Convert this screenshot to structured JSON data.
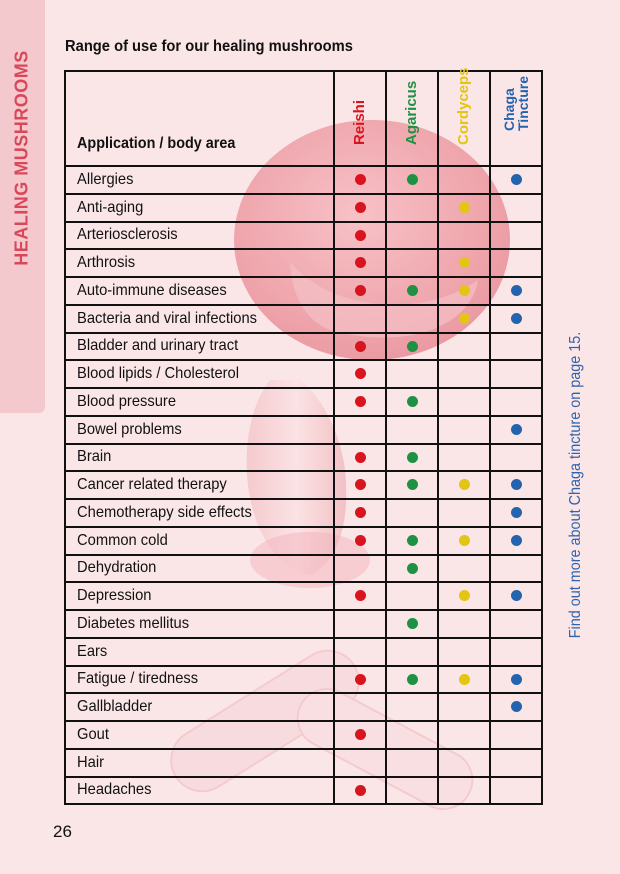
{
  "side_tab": {
    "label": "HEALING MUSHROOMS"
  },
  "heading": "Range of use for our healing mushrooms",
  "table": {
    "app_header": "Application / body area",
    "mushrooms": [
      {
        "label_lines": [
          "Reishi"
        ],
        "color": "#d8141e"
      },
      {
        "label_lines": [
          "Agaricus"
        ],
        "color": "#1f9142"
      },
      {
        "label_lines": [
          "Cordyceps"
        ],
        "color": "#e2c613"
      },
      {
        "label_lines": [
          "Chaga",
          "Tincture"
        ],
        "color": "#2463ad"
      }
    ],
    "rows": [
      {
        "label": "Allergies",
        "marks": [
          true,
          true,
          false,
          true
        ]
      },
      {
        "label": "Anti-aging",
        "marks": [
          true,
          false,
          true,
          false
        ]
      },
      {
        "label": "Arteriosclerosis",
        "marks": [
          true,
          false,
          false,
          false
        ]
      },
      {
        "label": "Arthrosis",
        "marks": [
          true,
          false,
          true,
          false
        ]
      },
      {
        "label": "Auto-immune diseases",
        "marks": [
          true,
          true,
          true,
          true
        ]
      },
      {
        "label": "Bacteria and viral infections",
        "marks": [
          false,
          false,
          true,
          true
        ]
      },
      {
        "label": "Bladder and urinary tract",
        "marks": [
          true,
          true,
          false,
          false
        ]
      },
      {
        "label": "Blood lipids / Cholesterol",
        "marks": [
          true,
          false,
          false,
          false
        ]
      },
      {
        "label": "Blood pressure",
        "marks": [
          true,
          true,
          false,
          false
        ]
      },
      {
        "label": "Bowel problems",
        "marks": [
          false,
          false,
          false,
          true
        ]
      },
      {
        "label": "Brain",
        "marks": [
          true,
          true,
          false,
          false
        ]
      },
      {
        "label": "Cancer related therapy",
        "marks": [
          true,
          true,
          true,
          true
        ]
      },
      {
        "label": "Chemotherapy side effects",
        "marks": [
          true,
          false,
          false,
          true
        ]
      },
      {
        "label": "Common cold",
        "marks": [
          true,
          true,
          true,
          true
        ]
      },
      {
        "label": "Dehydration",
        "marks": [
          false,
          true,
          false,
          false
        ]
      },
      {
        "label": "Depression",
        "marks": [
          true,
          false,
          true,
          true
        ]
      },
      {
        "label": "Diabetes mellitus",
        "marks": [
          false,
          true,
          false,
          false
        ]
      },
      {
        "label": "Ears",
        "marks": [
          false,
          false,
          false,
          false
        ]
      },
      {
        "label": "Fatigue / tiredness",
        "marks": [
          true,
          true,
          true,
          true
        ]
      },
      {
        "label": "Gallbladder",
        "marks": [
          false,
          false,
          false,
          true
        ]
      },
      {
        "label": "Gout",
        "marks": [
          true,
          false,
          false,
          false
        ]
      },
      {
        "label": "Hair",
        "marks": [
          false,
          false,
          false,
          false
        ]
      },
      {
        "label": "Headaches",
        "marks": [
          true,
          false,
          false,
          false
        ]
      }
    ]
  },
  "side_note": "Find out more about Chaga tincture on page 15.",
  "page_number": "26"
}
